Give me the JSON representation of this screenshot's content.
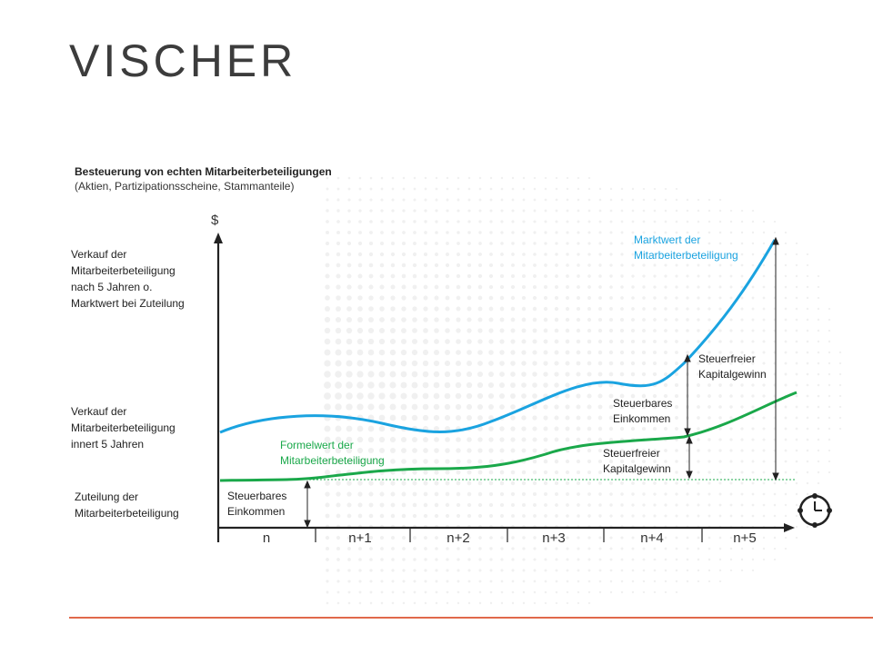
{
  "brand": "VISCHER",
  "title": {
    "line1": "Besteuerung von echten Mitarbeiterbeteiligungen",
    "line2": "(Aktien, Partizipationsscheine, Stammanteile)"
  },
  "y_axis_symbol": "$",
  "side_labels": {
    "sale_after_5": [
      "Verkauf der",
      "Mitarbeiterbeteiligung",
      "nach 5 Jahren o.",
      "Marktwert bei Zuteilung"
    ],
    "sale_within_5": [
      "Verkauf der",
      "Mitarbeiterbeteiligung",
      "innert 5 Jahren"
    ],
    "allocation": [
      "Zuteilung der",
      "Mitarbeiterbeteiligung"
    ]
  },
  "curve_labels": {
    "market_value": [
      "Marktwert der",
      "Mitarbeiterbeteiligung"
    ],
    "formula_value": [
      "Formelwert der",
      "Mitarbeiterbeteiligung"
    ]
  },
  "annotations": {
    "taxable_income_start": [
      "Steuerbares",
      "Einkommen"
    ],
    "taxable_income_n4": [
      "Steuerbares",
      "Einkommen"
    ],
    "tax_free_gain_upper": [
      "Steuerfreier",
      "Kapitalgewinn"
    ],
    "tax_free_gain_lower": [
      "Steuerfreier",
      "Kapitalgewinn"
    ]
  },
  "x_ticks": [
    "n",
    "n+1",
    "n+2",
    "n+3",
    "n+4",
    "n+5"
  ],
  "colors": {
    "market_value": "#1aa3e0",
    "formula_value": "#1aa84a",
    "axis": "#222222",
    "accent_rule": "#e0694b",
    "dots": "#f0f0f0"
  },
  "icons": {
    "clock": "clock-icon"
  }
}
